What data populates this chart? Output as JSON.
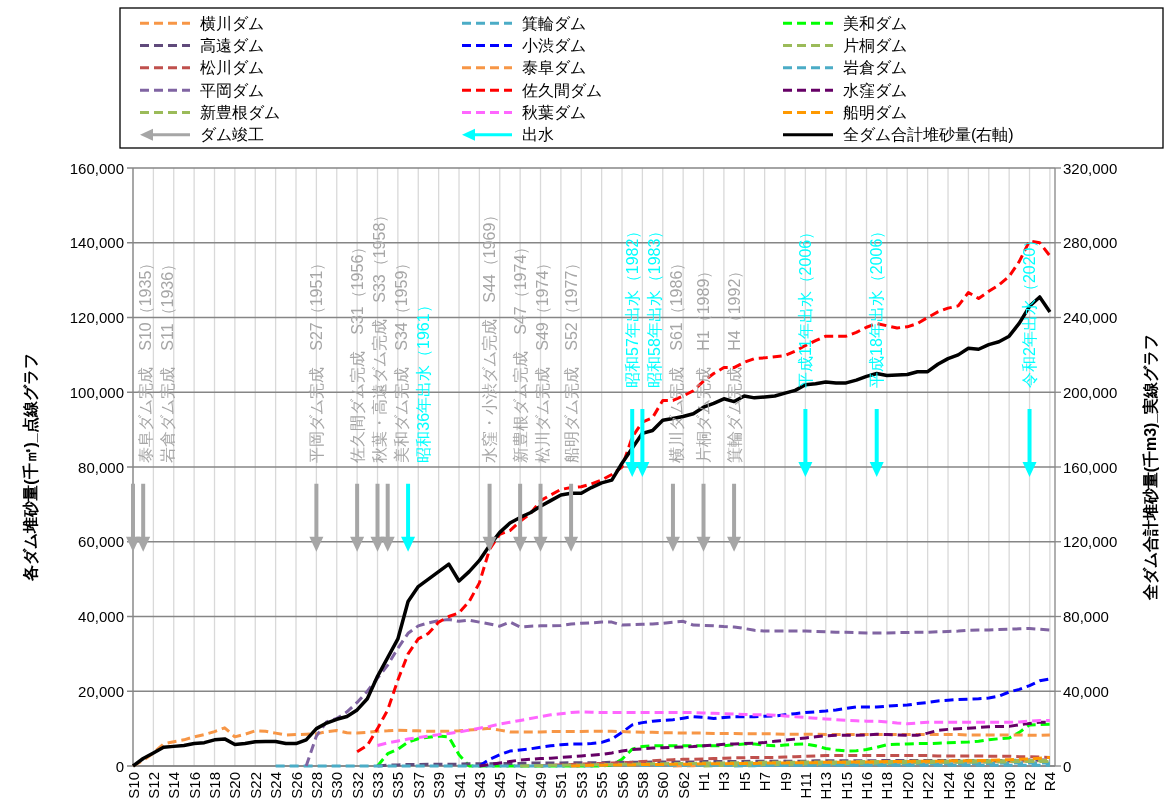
{
  "chart_data": {
    "type": "line",
    "categories": [
      "S10",
      null,
      "S12",
      null,
      "S14",
      null,
      "S16",
      null,
      "S18",
      null,
      "S20",
      null,
      "S22",
      null,
      "S24",
      null,
      "S26",
      null,
      "S28",
      null,
      "S30",
      null,
      "S32",
      null,
      "S33",
      null,
      "S35",
      null,
      "S37",
      null,
      "S39",
      null,
      "S41",
      null,
      "S43",
      null,
      "S45",
      null,
      "S47",
      null,
      "S49",
      null,
      "S51",
      null,
      "S53",
      null,
      "S55",
      null,
      "S56",
      null,
      "S58",
      null,
      "S60",
      null,
      "S62",
      null,
      "H1",
      null,
      "H3",
      null,
      "H5",
      null,
      "H7",
      null,
      "H9",
      null,
      "H11",
      null,
      "H13",
      null,
      "H15",
      null,
      "H16",
      null,
      "H18",
      null,
      "H20",
      null,
      "H22",
      null,
      "H24",
      null,
      "H26",
      null,
      "H28",
      null,
      "H30",
      null,
      "R2",
      null,
      "R4"
    ],
    "ylim": [
      0,
      160000
    ],
    "yticks": [
      0,
      {
        "value": 20000,
        "label": "20,000"
      },
      {
        "value": 40000,
        "label": "40,000"
      },
      {
        "value": 60000,
        "label": "60,000"
      },
      {
        "value": 80000,
        "label": "80,000"
      },
      {
        "value": 100000,
        "label": "100,000"
      },
      {
        "value": 120000,
        "label": "120,000"
      },
      {
        "value": 140000,
        "label": "140,000"
      },
      {
        "value": 160000,
        "label": "160,000"
      }
    ],
    "y2lim": [
      0,
      320000
    ],
    "y2ticks": [
      0,
      {
        "value": 40000,
        "label": "40,000"
      },
      {
        "value": 80000,
        "label": "80,000"
      },
      {
        "value": 120000,
        "label": "120,000"
      },
      {
        "value": 160000,
        "label": "160,000"
      },
      {
        "value": 200000,
        "label": "200,000"
      },
      {
        "value": 240000,
        "label": "240,000"
      },
      {
        "value": 280000,
        "label": "280,000"
      },
      {
        "value": 320000,
        "label": "320,000"
      }
    ],
    "ylabel": "各ダム堆砂量(千㎥)_点線グラフ",
    "y2label": "全ダム合計堆砂量(千m3)_実線グラフ",
    "grid": true,
    "legend": "top",
    "series": [
      {
        "name": "横川ダム",
        "color": "#f79646",
        "line_style": "dashed",
        "values": [
          null,
          null,
          null,
          null,
          null,
          null,
          null,
          null,
          null,
          null,
          null,
          null,
          null,
          null,
          null,
          null,
          null,
          null,
          null,
          null,
          null,
          null,
          null,
          null,
          null,
          null,
          null,
          null,
          null,
          null,
          null,
          null,
          null,
          null,
          null,
          null,
          null,
          null,
          null,
          null,
          null,
          null,
          null,
          null,
          null,
          null,
          null,
          null,
          null,
          null,
          null,
          null,
          null,
          0,
          100,
          100,
          200,
          200,
          200,
          300,
          300,
          300,
          400,
          400,
          400,
          500,
          500,
          500,
          600,
          600,
          600,
          700,
          700,
          700,
          800,
          800,
          800,
          900,
          900,
          900,
          1000,
          1000,
          1000,
          1100,
          1100,
          1200,
          1200,
          1300,
          1300,
          1400,
          1500
        ]
      },
      {
        "name": "箕輪ダム",
        "color": "#4bacc6",
        "line_style": "dashed",
        "values": [
          null,
          null,
          null,
          null,
          null,
          null,
          null,
          null,
          null,
          null,
          null,
          null,
          null,
          null,
          null,
          null,
          null,
          null,
          null,
          null,
          null,
          null,
          null,
          null,
          null,
          null,
          null,
          null,
          null,
          null,
          null,
          null,
          null,
          null,
          null,
          null,
          null,
          null,
          null,
          null,
          null,
          null,
          null,
          null,
          null,
          null,
          null,
          null,
          null,
          null,
          null,
          null,
          null,
          null,
          null,
          null,
          null,
          null,
          null,
          0,
          100,
          100,
          200,
          200,
          200,
          300,
          300,
          300,
          300,
          400,
          400,
          400,
          400,
          500,
          500,
          500,
          500,
          600,
          600,
          600,
          600,
          600,
          700,
          700,
          700,
          700,
          800,
          800,
          800,
          800,
          800
        ]
      },
      {
        "name": "美和ダム",
        "color": "#00ff00",
        "line_style": "dashed",
        "values": [
          null,
          null,
          null,
          null,
          null,
          null,
          null,
          null,
          null,
          null,
          null,
          null,
          null,
          null,
          null,
          null,
          null,
          null,
          null,
          null,
          null,
          null,
          null,
          null,
          0,
          3300,
          4500,
          6400,
          7300,
          7700,
          8000,
          7800,
          3000,
          0,
          0,
          0,
          0,
          0,
          0,
          0,
          0,
          0,
          0,
          0,
          0,
          0,
          0,
          300,
          1800,
          4500,
          5200,
          5400,
          5400,
          5400,
          5400,
          5400,
          5400,
          5400,
          5400,
          5700,
          5900,
          5900,
          5600,
          5400,
          5600,
          5800,
          5900,
          5400,
          4700,
          4300,
          4000,
          4100,
          4400,
          5000,
          5700,
          5800,
          5900,
          6000,
          6000,
          6100,
          6200,
          6300,
          6400,
          6600,
          7000,
          7300,
          7500,
          9000,
          11000,
          11100,
          11200
        ]
      },
      {
        "name": "高遠ダム",
        "color": "#604a7b",
        "line_style": "dashed",
        "values": [
          null,
          null,
          null,
          null,
          null,
          null,
          null,
          null,
          null,
          null,
          null,
          null,
          null,
          null,
          null,
          null,
          null,
          null,
          null,
          null,
          null,
          null,
          null,
          null,
          0,
          200,
          300,
          400,
          400,
          500,
          500,
          500,
          500,
          600,
          600,
          600,
          700,
          700,
          700,
          800,
          800,
          800,
          800,
          900,
          900,
          900,
          900,
          1000,
          1000,
          1000,
          1000,
          1100,
          1100,
          1100,
          1100,
          1100,
          1200,
          1200,
          1200,
          1200,
          1200,
          1300,
          1300,
          1300,
          1300,
          1300,
          1300,
          1400,
          1400,
          1400,
          1400,
          1400,
          1400,
          1400,
          1500,
          1500,
          1500,
          1500,
          1500,
          1500,
          1500,
          1500,
          1500,
          1500,
          1500,
          1500,
          1500,
          1600,
          1600,
          1600,
          1600
        ]
      },
      {
        "name": "小渋ダム",
        "color": "#0000ff",
        "line_style": "dashed",
        "values": [
          null,
          null,
          null,
          null,
          null,
          null,
          null,
          null,
          null,
          null,
          null,
          null,
          null,
          null,
          null,
          null,
          null,
          null,
          null,
          null,
          null,
          null,
          null,
          null,
          null,
          null,
          null,
          null,
          null,
          null,
          null,
          null,
          null,
          null,
          0,
          1800,
          3000,
          4000,
          4300,
          4600,
          5000,
          5400,
          5700,
          5900,
          5900,
          6000,
          6300,
          7200,
          9000,
          11000,
          11600,
          12000,
          12200,
          12400,
          12800,
          13200,
          13000,
          12700,
          13000,
          13200,
          13200,
          13200,
          13300,
          13400,
          13700,
          14000,
          14300,
          14500,
          14700,
          15000,
          15400,
          15800,
          15800,
          15800,
          16000,
          16200,
          16300,
          16700,
          17000,
          17400,
          17600,
          17800,
          17900,
          18000,
          18200,
          18700,
          19800,
          20500,
          21500,
          22800,
          23300
        ]
      },
      {
        "name": "片桐ダム",
        "color": "#9bbb59",
        "line_style": "dashed",
        "values": [
          null,
          null,
          null,
          null,
          null,
          null,
          null,
          null,
          null,
          null,
          null,
          null,
          null,
          null,
          null,
          null,
          null,
          null,
          null,
          null,
          null,
          null,
          null,
          null,
          null,
          null,
          null,
          null,
          null,
          null,
          null,
          null,
          null,
          null,
          null,
          null,
          null,
          null,
          null,
          null,
          null,
          null,
          null,
          null,
          null,
          null,
          null,
          null,
          null,
          null,
          null,
          null,
          null,
          null,
          null,
          null,
          0,
          100,
          200,
          200,
          300,
          300,
          400,
          400,
          500,
          500,
          600,
          600,
          600,
          700,
          700,
          700,
          800,
          800,
          800,
          900,
          900,
          900,
          900,
          1000,
          1000,
          1000,
          1000,
          1100,
          1100,
          1100,
          1100,
          1200,
          1200,
          1200,
          1200
        ]
      },
      {
        "name": "松川ダム",
        "color": "#c0504d",
        "line_style": "dashed",
        "values": [
          null,
          null,
          null,
          null,
          null,
          null,
          null,
          null,
          null,
          null,
          null,
          null,
          null,
          null,
          null,
          null,
          null,
          null,
          null,
          null,
          null,
          null,
          null,
          null,
          null,
          null,
          null,
          null,
          null,
          null,
          null,
          null,
          null,
          null,
          null,
          null,
          null,
          null,
          null,
          null,
          0,
          200,
          300,
          400,
          500,
          600,
          700,
          800,
          900,
          1000,
          1200,
          1400,
          1600,
          1700,
          1800,
          1800,
          1900,
          2000,
          2100,
          2200,
          2200,
          2300,
          2300,
          2300,
          2400,
          2500,
          2600,
          2700,
          2800,
          2800,
          2800,
          2800,
          2800,
          2800,
          2800,
          2800,
          2800,
          2800,
          2800,
          2700,
          2700,
          2700,
          2700,
          2700,
          2600,
          2600,
          2600,
          2500,
          2500,
          2400,
          2300
        ]
      },
      {
        "name": "泰阜ダム",
        "color": "#f79646",
        "line_style": "dashed",
        "values": [
          0,
          1500,
          3500,
          5900,
          6500,
          7000,
          7800,
          8400,
          9200,
          10200,
          7800,
          8500,
          9400,
          9300,
          8800,
          8300,
          8400,
          8500,
          8600,
          9200,
          9500,
          8900,
          8800,
          9000,
          9300,
          9400,
          9600,
          9500,
          9400,
          9300,
          9300,
          9300,
          9400,
          9600,
          9800,
          10100,
          9600,
          9100,
          9100,
          9100,
          9100,
          9200,
          9200,
          9200,
          9200,
          9300,
          9300,
          9300,
          9200,
          9100,
          9000,
          9000,
          8900,
          8900,
          8800,
          8800,
          8800,
          8700,
          8700,
          8700,
          8600,
          8600,
          8600,
          8600,
          8500,
          8500,
          8500,
          8500,
          8400,
          8400,
          8400,
          8400,
          8400,
          8400,
          8400,
          8400,
          8400,
          8400,
          8400,
          8400,
          8400,
          8400,
          8300,
          8300,
          8300,
          8300,
          8300,
          8300,
          8200,
          8200,
          8300
        ]
      },
      {
        "name": "岩倉ダム",
        "color": "#4bacc6",
        "line_style": "dashed",
        "values": [
          null,
          null,
          null,
          null,
          null,
          null,
          null,
          null,
          null,
          null,
          null,
          null,
          null,
          null,
          0,
          0,
          0,
          0,
          0,
          0,
          0,
          0,
          0,
          0,
          0,
          0,
          0,
          0,
          0,
          0,
          0,
          0,
          0,
          0,
          0,
          0,
          0,
          0,
          0,
          0,
          0,
          0,
          0,
          0,
          0,
          0,
          200,
          200,
          200,
          200,
          200,
          200,
          200,
          200,
          200,
          200,
          200,
          200,
          200,
          200,
          200,
          200,
          200,
          200,
          200,
          200,
          200,
          200,
          200,
          200,
          200,
          200,
          200,
          200,
          200,
          200,
          200,
          200,
          200,
          200,
          200,
          200,
          200,
          200,
          200,
          200,
          200,
          200,
          200,
          200,
          200
        ]
      },
      {
        "name": "平岡ダム",
        "color": "#8064a2",
        "line_style": "dashed",
        "values": [
          null,
          null,
          null,
          null,
          null,
          null,
          null,
          null,
          null,
          null,
          null,
          null,
          null,
          null,
          null,
          null,
          null,
          0,
          8000,
          11800,
          12700,
          14500,
          17000,
          20000,
          23500,
          27000,
          31500,
          35500,
          37500,
          38300,
          38900,
          39200,
          38700,
          39000,
          38500,
          38000,
          37400,
          38500,
          37200,
          37400,
          37500,
          37500,
          37600,
          38000,
          38200,
          38300,
          38500,
          38500,
          37700,
          37800,
          37900,
          38000,
          38200,
          38500,
          38700,
          37700,
          37600,
          37500,
          37300,
          37200,
          36800,
          36300,
          36100,
          36100,
          36100,
          36100,
          36100,
          36000,
          35900,
          35800,
          35800,
          35700,
          35600,
          35600,
          35600,
          35700,
          35700,
          35800,
          35800,
          35900,
          36000,
          36100,
          36300,
          36400,
          36400,
          36500,
          36600,
          36700,
          36800,
          36600,
          36400
        ]
      },
      {
        "name": "佐久間ダム",
        "color": "#ff0000",
        "line_style": "dashed",
        "values": [
          null,
          null,
          null,
          null,
          null,
          null,
          null,
          null,
          null,
          null,
          null,
          null,
          null,
          null,
          null,
          null,
          null,
          null,
          null,
          null,
          null,
          null,
          3800,
          5500,
          10000,
          15000,
          23000,
          30000,
          34000,
          35500,
          38500,
          40000,
          41000,
          44000,
          49000,
          58000,
          62000,
          63000,
          65500,
          67500,
          71000,
          72500,
          74000,
          74500,
          74700,
          75500,
          76500,
          78000,
          80000,
          88000,
          92000,
          93200,
          97800,
          97800,
          99000,
          100400,
          103000,
          105000,
          106600,
          106600,
          108000,
          109000,
          109200,
          109500,
          109800,
          111000,
          112500,
          113800,
          115000,
          115000,
          115000,
          116000,
          117400,
          118400,
          117800,
          117200,
          117500,
          118400,
          120000,
          121500,
          122500,
          123100,
          126700,
          125100,
          127000,
          128700,
          131000,
          135000,
          140500,
          140000,
          136500
        ]
      },
      {
        "name": "水窪ダム",
        "color": "#660066",
        "line_style": "dashed",
        "values": [
          null,
          null,
          null,
          null,
          null,
          null,
          null,
          null,
          null,
          null,
          null,
          null,
          null,
          null,
          null,
          null,
          null,
          null,
          null,
          null,
          null,
          null,
          null,
          null,
          null,
          null,
          null,
          null,
          null,
          null,
          null,
          null,
          null,
          null,
          0,
          400,
          800,
          1200,
          1600,
          1800,
          2000,
          2100,
          2300,
          2500,
          2700,
          2900,
          3100,
          3500,
          4000,
          4400,
          4600,
          4800,
          4900,
          5000,
          5100,
          5200,
          5400,
          5600,
          5800,
          5900,
          6000,
          6100,
          6300,
          6600,
          6900,
          7200,
          7500,
          7800,
          8100,
          8200,
          8200,
          8200,
          8300,
          8500,
          8400,
          8300,
          8200,
          8200,
          8800,
          9500,
          9800,
          10000,
          10100,
          10300,
          10500,
          10600,
          10600,
          11000,
          11400,
          11700,
          11700
        ]
      },
      {
        "name": "新豊根ダム",
        "color": "#9bbb59",
        "line_style": "dashed",
        "values": [
          null,
          null,
          null,
          null,
          null,
          null,
          null,
          null,
          null,
          null,
          null,
          null,
          null,
          null,
          null,
          null,
          null,
          null,
          null,
          null,
          null,
          null,
          null,
          null,
          null,
          null,
          null,
          null,
          null,
          null,
          null,
          null,
          null,
          null,
          null,
          null,
          null,
          null,
          0,
          100,
          100,
          200,
          200,
          300,
          300,
          300,
          400,
          400,
          500,
          500,
          600,
          600,
          600,
          700,
          700,
          700,
          800,
          800,
          800,
          900,
          900,
          900,
          1000,
          1000,
          1000,
          1000,
          1100,
          1100,
          1100,
          1100,
          1100,
          1200,
          1200,
          1200,
          1200,
          1200,
          1300,
          1300,
          1300,
          1300,
          1300,
          1300,
          1400,
          1400,
          1400,
          1400,
          1400,
          1500,
          1500,
          1500,
          1500
        ]
      },
      {
        "name": "秋葉ダム",
        "color": "#ff66ff",
        "line_style": "dashed",
        "values": [
          null,
          null,
          null,
          null,
          null,
          null,
          null,
          null,
          null,
          null,
          null,
          null,
          null,
          null,
          null,
          null,
          null,
          null,
          null,
          null,
          null,
          null,
          null,
          null,
          5500,
          6200,
          6700,
          7200,
          7600,
          8000,
          8400,
          8700,
          9100,
          9600,
          10100,
          10600,
          11200,
          11700,
          12200,
          12700,
          13200,
          13700,
          14000,
          14300,
          14500,
          14400,
          14300,
          14300,
          14300,
          14300,
          14300,
          14300,
          14300,
          14300,
          14300,
          14300,
          14200,
          14100,
          14000,
          13900,
          13800,
          13700,
          13700,
          13600,
          13400,
          13200,
          13000,
          12800,
          12600,
          12400,
          12200,
          12100,
          12000,
          12000,
          11800,
          11500,
          11300,
          11500,
          11700,
          11700,
          11700,
          11700,
          11700,
          11700,
          11700,
          11700,
          11700,
          11800,
          12000,
          12200,
          12200
        ]
      },
      {
        "name": "船明ダム",
        "color": "#ff9900",
        "line_style": "dashed",
        "values": [
          null,
          null,
          null,
          null,
          null,
          null,
          null,
          null,
          null,
          null,
          null,
          null,
          null,
          null,
          null,
          null,
          null,
          null,
          null,
          null,
          null,
          null,
          null,
          null,
          null,
          null,
          null,
          null,
          null,
          null,
          null,
          null,
          null,
          null,
          null,
          null,
          null,
          null,
          null,
          null,
          null,
          null,
          null,
          0,
          100,
          200,
          200,
          300,
          300,
          300,
          400,
          400,
          400,
          500,
          500,
          500,
          600,
          600,
          600,
          700,
          700,
          700,
          800,
          800,
          800,
          900,
          900,
          900,
          1000,
          1000,
          1000,
          1100,
          1100,
          1100,
          1200,
          1200,
          1200,
          1300,
          1300,
          1300,
          1400,
          1400,
          1400,
          1500,
          1500,
          1600,
          1700,
          1800,
          1900,
          2100,
          2300
        ]
      },
      {
        "name": "ダム竣工",
        "type": "scatter",
        "marker": "triangle",
        "color": "#a6a6a6",
        "values": [
          60000,
          60000,
          null,
          null,
          null,
          null,
          null,
          null,
          null,
          null,
          null,
          null,
          null,
          null,
          null,
          null,
          null,
          null,
          60000,
          null,
          null,
          null,
          60000,
          null,
          60000,
          60000,
          null,
          null,
          null,
          null,
          null,
          null,
          null,
          null,
          null,
          60000,
          null,
          null,
          60000,
          null,
          60000,
          null,
          null,
          60000,
          null,
          null,
          null,
          null,
          null,
          null,
          null,
          null,
          null,
          60000,
          null,
          null,
          60000,
          null,
          null,
          60000,
          null,
          null,
          null,
          null,
          null,
          null,
          null,
          null,
          null,
          null,
          null,
          null,
          null,
          null,
          null,
          null,
          null,
          null,
          null,
          null,
          null,
          null,
          null,
          null,
          null,
          null,
          null,
          null,
          null,
          null,
          null
        ]
      },
      {
        "name": "出水",
        "type": "scatter",
        "marker": "triangle",
        "color": "#00ffff",
        "values": [
          null,
          null,
          null,
          null,
          null,
          null,
          null,
          null,
          null,
          null,
          null,
          null,
          null,
          null,
          null,
          null,
          null,
          null,
          null,
          null,
          null,
          null,
          null,
          null,
          null,
          null,
          null,
          60000,
          null,
          null,
          null,
          null,
          null,
          null,
          null,
          null,
          null,
          null,
          null,
          null,
          null,
          null,
          null,
          null,
          null,
          null,
          null,
          null,
          null,
          80000,
          80000,
          null,
          null,
          null,
          null,
          null,
          null,
          null,
          null,
          null,
          null,
          null,
          null,
          null,
          null,
          null,
          80000,
          null,
          null,
          null,
          null,
          null,
          null,
          80000,
          null,
          null,
          null,
          null,
          null,
          null,
          null,
          null,
          null,
          null,
          null,
          null,
          null,
          null,
          80000,
          null,
          null
        ]
      },
      {
        "name": "全ダム合計堆砂量(右軸)",
        "color": "#000000",
        "line_style": "solid",
        "axis": "y2",
        "values": [
          0,
          4000,
          7000,
          10000,
          10500,
          11000,
          12000,
          12500,
          14000,
          14500,
          11500,
          12000,
          13000,
          13100,
          13100,
          12000,
          12000,
          14000,
          20000,
          23000,
          25000,
          26500,
          30000,
          36000,
          48000,
          58000,
          68000,
          88000,
          96000,
          100000,
          104000,
          108000,
          99000,
          104000,
          110000,
          118000,
          125000,
          130000,
          133000,
          135500,
          139000,
          142000,
          145000,
          146000,
          146000,
          149000,
          151500,
          153000,
          162000,
          170000,
          178000,
          179500,
          185000,
          186000,
          187000,
          188500,
          192000,
          194000,
          196500,
          195000,
          198000,
          197000,
          197500,
          198000,
          199500,
          201000,
          204000,
          204500,
          205500,
          205000,
          205000,
          206500,
          208500,
          210000,
          209000,
          209200,
          209500,
          211000,
          211000,
          215000,
          218000,
          220000,
          223500,
          223000,
          225500,
          227000,
          230000,
          237000,
          246000,
          251000,
          243000
        ]
      }
    ],
    "annotations": [
      "泰阜ダム完成　S10（1935）",
      "岩倉ダム完成　S11（1936）",
      "平岡ダム完成　S27（1951）",
      "佐久間ダム完成　S31（1956）",
      "秋葉・高遠ダム完成　S33（1958）",
      "美和ダム完成　S34（1959）",
      "昭和36年出水（1961）",
      "水窪・小渋ダム完成　S44（1969）",
      "新豊根ダム完成　S47（1974）",
      "松川ダム完成　S49（1974）",
      "船明ダム完成　S52（1977）",
      "昭和57年出水（1982）",
      "昭和58年出水（1983）",
      "横川ダム完成　S61（1986）",
      "片桐ダム完成　H1（1989）",
      "箕輪ダム完成　H4（1992）",
      "平成11年出水（2006）",
      "平成18年出水（2006）",
      "令和2年出水（2020）"
    ]
  }
}
